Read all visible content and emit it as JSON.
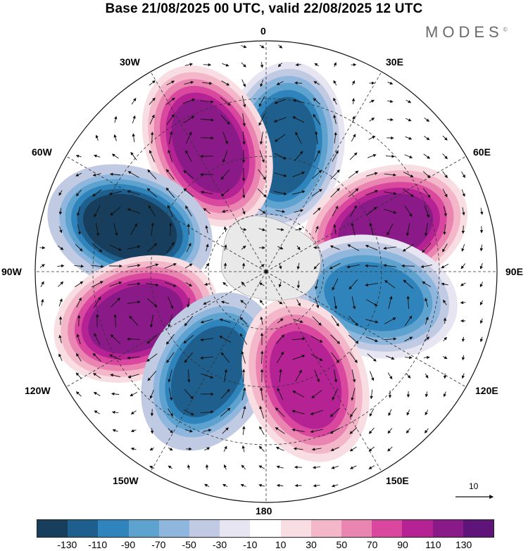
{
  "title": "Base 21/08/2025 00 UTC, valid 22/08/2025 12 UTC",
  "brand": "MODES",
  "brand_mark": "©",
  "longitude_labels": {
    "top": "0",
    "bottom": "180",
    "left": "90W",
    "right": "90E",
    "nw30": "30W",
    "nw60": "60W",
    "sw120": "120W",
    "sw150": "150W",
    "ne30": "30E",
    "ne60": "60E",
    "se120": "120E",
    "se150": "150E"
  },
  "reference_vector_label": "10",
  "colorbar": {
    "colors": [
      "#173e5c",
      "#1f5f8e",
      "#2f84bb",
      "#5ea2cf",
      "#8fb6dc",
      "#c0cbe3",
      "#e6e5f1",
      "#ffffff",
      "#f8dde2",
      "#f3b7c9",
      "#ea85b1",
      "#d9479f",
      "#b42294",
      "#8a1a88",
      "#5f1479"
    ],
    "tick_labels": [
      "-130",
      "-110",
      "-90",
      "-70",
      "-50",
      "-30",
      "-10",
      "10",
      "30",
      "50",
      "70",
      "90",
      "110",
      "130"
    ]
  },
  "pattern": {
    "type": "anomaly-map",
    "projection": "south-polar-stereographic",
    "units": "contour-level",
    "blobs": [
      {
        "name": "ne-of-0-negative",
        "level": -110,
        "lon_deg": 8,
        "colat": 0.55
      },
      {
        "name": "nnw-positive",
        "level": 120,
        "lon_deg": -25,
        "colat": 0.6
      },
      {
        "name": "west-negative",
        "level": -130,
        "lon_deg": -72,
        "colat": 0.62
      },
      {
        "name": "east-positive",
        "level": 120,
        "lon_deg": 70,
        "colat": 0.55
      },
      {
        "name": "west-south-positive",
        "level": 120,
        "lon_deg": -110,
        "colat": 0.6
      },
      {
        "name": "east-south-negative",
        "level": -90,
        "lon_deg": 103,
        "colat": 0.48
      },
      {
        "name": "south-negative",
        "level": -120,
        "lon_deg": -150,
        "colat": 0.5
      },
      {
        "name": "south-east-positive",
        "level": 100,
        "lon_deg": 160,
        "colat": 0.5
      }
    ]
  }
}
